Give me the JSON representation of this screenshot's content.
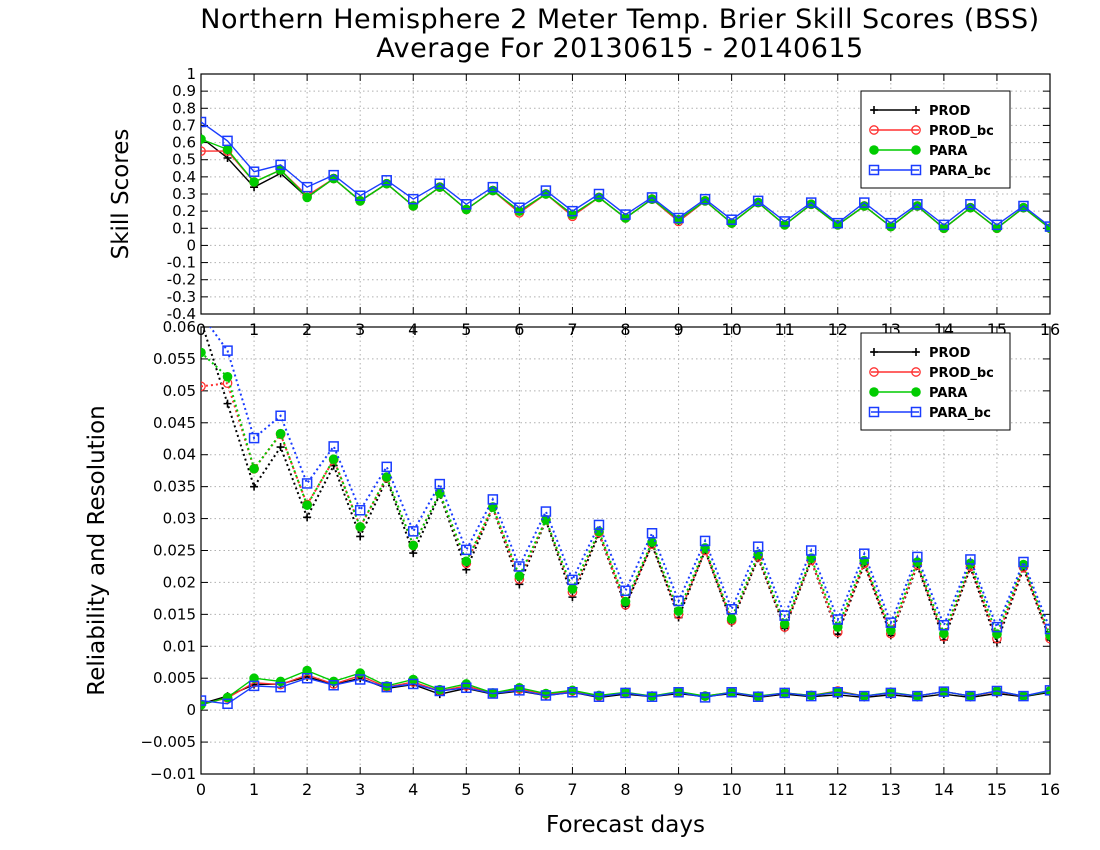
{
  "title_line1": "Northern Hemisphere 2 Meter Temp. Brier Skill Scores (BSS)",
  "title_line2": "Average For 20130615 - 20140615",
  "colors": {
    "PROD": "#000000",
    "PROD_bc": "#ff3030",
    "PARA": "#00cc00",
    "PARA_bc": "#1a3cff"
  },
  "chart_data": [
    {
      "type": "line",
      "ylabel": "Skill Scores",
      "xlabel": "",
      "ylim": [
        -0.4,
        1
      ],
      "yticks": [
        "-0.4",
        "-0.3",
        "-0.2",
        "-0.1",
        "0",
        "0.1",
        "0.2",
        "0.3",
        "0.4",
        "0.5",
        "0.6",
        "0.7",
        "0.8",
        "0.9",
        "1"
      ],
      "xlim": [
        0,
        16
      ],
      "xticks": [
        "0",
        "1",
        "2",
        "3",
        "4",
        "5",
        "6",
        "7",
        "8",
        "9",
        "10",
        "11",
        "12",
        "13",
        "14",
        "15",
        "16"
      ],
      "grid": true,
      "legend": "top-right",
      "x": [
        0,
        0.5,
        1,
        1.5,
        2,
        2.5,
        3,
        3.5,
        4,
        4.5,
        5,
        5.5,
        6,
        6.5,
        7,
        7.5,
        8,
        8.5,
        9,
        9.5,
        10,
        10.5,
        11,
        11.5,
        12,
        12.5,
        13,
        13.5,
        14,
        14.5,
        15,
        15.5,
        16
      ],
      "series": [
        {
          "name": "PROD",
          "marker": "plus",
          "values": [
            0.63,
            0.51,
            0.34,
            0.42,
            0.28,
            0.39,
            0.26,
            0.36,
            0.23,
            0.34,
            0.21,
            0.32,
            0.2,
            0.3,
            0.18,
            0.28,
            0.16,
            0.27,
            0.14,
            0.26,
            0.13,
            0.25,
            0.12,
            0.24,
            0.12,
            0.23,
            0.11,
            0.23,
            0.1,
            0.22,
            0.1,
            0.22,
            0.1
          ]
        },
        {
          "name": "PROD_bc",
          "marker": "open-circle",
          "values": [
            0.55,
            0.55,
            0.37,
            0.44,
            0.29,
            0.39,
            0.26,
            0.36,
            0.23,
            0.34,
            0.21,
            0.32,
            0.19,
            0.3,
            0.17,
            0.28,
            0.16,
            0.27,
            0.14,
            0.26,
            0.13,
            0.25,
            0.12,
            0.24,
            0.12,
            0.23,
            0.11,
            0.23,
            0.1,
            0.22,
            0.1,
            0.22,
            0.1
          ]
        },
        {
          "name": "PARA",
          "marker": "filled-circle",
          "values": [
            0.62,
            0.56,
            0.37,
            0.44,
            0.28,
            0.39,
            0.26,
            0.36,
            0.23,
            0.34,
            0.21,
            0.32,
            0.2,
            0.3,
            0.18,
            0.28,
            0.16,
            0.27,
            0.15,
            0.26,
            0.13,
            0.25,
            0.12,
            0.24,
            0.12,
            0.23,
            0.11,
            0.23,
            0.1,
            0.22,
            0.1,
            0.22,
            0.1
          ]
        },
        {
          "name": "PARA_bc",
          "marker": "open-square",
          "values": [
            0.72,
            0.61,
            0.43,
            0.47,
            0.34,
            0.41,
            0.29,
            0.38,
            0.27,
            0.36,
            0.24,
            0.34,
            0.22,
            0.32,
            0.2,
            0.3,
            0.18,
            0.28,
            0.16,
            0.27,
            0.15,
            0.26,
            0.14,
            0.25,
            0.13,
            0.25,
            0.13,
            0.24,
            0.12,
            0.24,
            0.12,
            0.23,
            0.11
          ]
        }
      ]
    },
    {
      "type": "line",
      "ylabel": "Reliability and Resolution",
      "xlabel": "Forecast days",
      "ylim": [
        -0.01,
        0.06
      ],
      "yticks": [
        "−0.01",
        "−0.005",
        "0",
        "0.005",
        "0.01",
        "0.015",
        "0.02",
        "0.025",
        "0.03",
        "0.035",
        "0.04",
        "0.045",
        "0.05",
        "0.055",
        "0.06"
      ],
      "xlim": [
        0,
        16
      ],
      "xticks": [
        "0",
        "1",
        "2",
        "3",
        "4",
        "5",
        "6",
        "7",
        "8",
        "9",
        "10",
        "11",
        "12",
        "13",
        "14",
        "15",
        "16"
      ],
      "grid": true,
      "legend": "top-right",
      "x": [
        0,
        0.5,
        1,
        1.5,
        2,
        2.5,
        3,
        3.5,
        4,
        4.5,
        5,
        5.5,
        6,
        6.5,
        7,
        7.5,
        8,
        8.5,
        9,
        9.5,
        10,
        10.5,
        11,
        11.5,
        12,
        12.5,
        13,
        13.5,
        14,
        14.5,
        15,
        15.5,
        16
      ],
      "series": [
        {
          "name": "PROD",
          "role": "resolution",
          "style": "dotted",
          "marker": "plus",
          "values": [
            0.061,
            0.048,
            0.035,
            0.0412,
            0.0302,
            0.0383,
            0.0272,
            0.0362,
            0.0246,
            0.0338,
            0.022,
            0.0317,
            0.0197,
            0.0297,
            0.0177,
            0.0276,
            0.0163,
            0.0259,
            0.0145,
            0.025,
            0.0137,
            0.0238,
            0.0128,
            0.0234,
            0.0119,
            0.0228,
            0.0117,
            0.0226,
            0.011,
            0.0223,
            0.0106,
            0.0222,
            0.011
          ]
        },
        {
          "name": "PROD_bc",
          "role": "resolution",
          "style": "dotted",
          "marker": "open-circle",
          "values": [
            0.0507,
            0.0512,
            0.0378,
            0.0432,
            0.0322,
            0.0392,
            0.0287,
            0.0364,
            0.0258,
            0.034,
            0.023,
            0.0318,
            0.0205,
            0.0298,
            0.0185,
            0.0278,
            0.0165,
            0.026,
            0.015,
            0.025,
            0.014,
            0.024,
            0.013,
            0.0235,
            0.0122,
            0.023,
            0.012,
            0.0228,
            0.0115,
            0.0225,
            0.0112,
            0.0224,
            0.0112
          ]
        },
        {
          "name": "PARA",
          "role": "resolution",
          "style": "dotted",
          "marker": "filled-circle",
          "values": [
            0.056,
            0.0522,
            0.0378,
            0.0433,
            0.0321,
            0.0393,
            0.0287,
            0.0365,
            0.0258,
            0.034,
            0.0233,
            0.0318,
            0.021,
            0.0298,
            0.019,
            0.028,
            0.017,
            0.0263,
            0.0155,
            0.0254,
            0.0143,
            0.0244,
            0.0135,
            0.0238,
            0.013,
            0.0234,
            0.0125,
            0.0232,
            0.012,
            0.023,
            0.0119,
            0.0228,
            0.0117
          ]
        },
        {
          "name": "PARA_bc",
          "role": "resolution",
          "style": "dotted",
          "marker": "open-square",
          "values": [
            0.062,
            0.0563,
            0.0426,
            0.0461,
            0.0355,
            0.0413,
            0.0313,
            0.0381,
            0.028,
            0.0354,
            0.0251,
            0.033,
            0.0225,
            0.0311,
            0.0204,
            0.029,
            0.0187,
            0.0277,
            0.0171,
            0.0265,
            0.0158,
            0.0256,
            0.0148,
            0.025,
            0.0142,
            0.0245,
            0.0137,
            0.024,
            0.0133,
            0.0236,
            0.013,
            0.0232,
            0.0127
          ]
        },
        {
          "name": "PROD",
          "role": "reliability",
          "style": "solid",
          "marker": "plus",
          "values": [
            0.001,
            0.0022,
            0.004,
            0.0041,
            0.0052,
            0.004,
            0.005,
            0.0034,
            0.004,
            0.0025,
            0.0034,
            0.0025,
            0.003,
            0.0023,
            0.0028,
            0.002,
            0.0025,
            0.0021,
            0.0026,
            0.0021,
            0.0026,
            0.002,
            0.0025,
            0.0021,
            0.0024,
            0.002,
            0.0024,
            0.002,
            0.0025,
            0.002,
            0.0026,
            0.0021,
            0.0028
          ]
        },
        {
          "name": "PROD_bc",
          "role": "reliability",
          "style": "solid",
          "marker": "open-circle",
          "values": [
            0.0009,
            0.0019,
            0.0043,
            0.004,
            0.0055,
            0.0041,
            0.0054,
            0.0036,
            0.0044,
            0.003,
            0.0038,
            0.0026,
            0.0033,
            0.0025,
            0.003,
            0.0022,
            0.0027,
            0.0022,
            0.0028,
            0.0022,
            0.0028,
            0.0021,
            0.0027,
            0.0023,
            0.003,
            0.0022,
            0.0027,
            0.0022,
            0.0029,
            0.0022,
            0.0029,
            0.0022,
            0.003
          ]
        },
        {
          "name": "PARA",
          "role": "reliability",
          "style": "solid",
          "marker": "filled-circle",
          "values": [
            0.0008,
            0.002,
            0.005,
            0.0045,
            0.0062,
            0.0045,
            0.0058,
            0.0038,
            0.0048,
            0.0032,
            0.0041,
            0.0027,
            0.0035,
            0.0026,
            0.0031,
            0.0023,
            0.0028,
            0.0022,
            0.0029,
            0.0022,
            0.0028,
            0.0022,
            0.0027,
            0.0023,
            0.0029,
            0.0022,
            0.0028,
            0.0022,
            0.0029,
            0.0022,
            0.003,
            0.0022,
            0.003
          ]
        },
        {
          "name": "PARA_bc",
          "role": "reliability",
          "style": "solid",
          "marker": "open-square",
          "values": [
            0.0015,
            0.001,
            0.0038,
            0.0036,
            0.005,
            0.0039,
            0.0048,
            0.0036,
            0.0041,
            0.003,
            0.0035,
            0.0026,
            0.0031,
            0.0023,
            0.0028,
            0.0021,
            0.0027,
            0.0021,
            0.0028,
            0.002,
            0.0028,
            0.0021,
            0.0027,
            0.0022,
            0.0028,
            0.0022,
            0.0027,
            0.0022,
            0.0029,
            0.0022,
            0.003,
            0.0022,
            0.0031
          ]
        }
      ]
    }
  ]
}
